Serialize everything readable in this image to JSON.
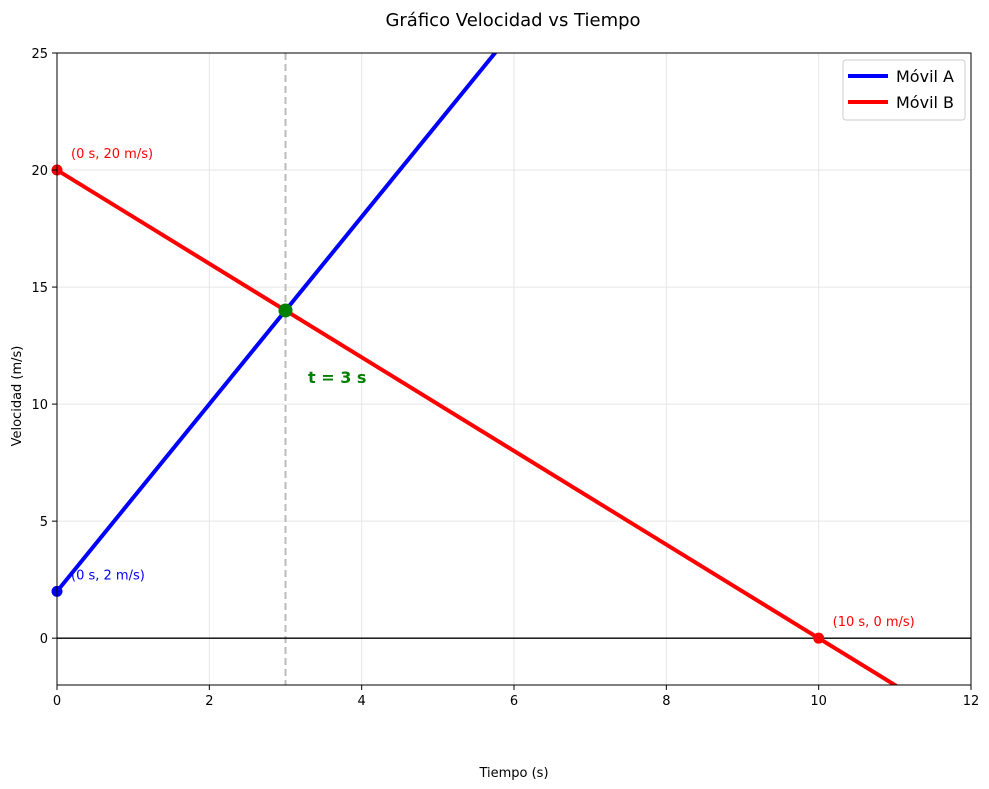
{
  "chart_data": {
    "type": "line",
    "title": "Gráfico Velocidad vs Tiempo",
    "xlabel": "Tiempo (s)",
    "ylabel": "Velocidad (m/s)",
    "xlim": [
      0,
      12
    ],
    "ylim": [
      -2,
      25
    ],
    "x_ticks": [
      0,
      2,
      4,
      6,
      8,
      10,
      12
    ],
    "y_ticks": [
      0,
      5,
      10,
      15,
      20,
      25
    ],
    "grid": true,
    "legend_position": "top-right",
    "series": [
      {
        "name": "Móvil A",
        "color": "#0000ff",
        "x": [
          0,
          12
        ],
        "y": [
          2,
          50
        ]
      },
      {
        "name": "Móvil B",
        "color": "#ff0000",
        "x": [
          0,
          12
        ],
        "y": [
          20,
          -4
        ]
      }
    ],
    "markers": [
      {
        "x": 0,
        "y": 2,
        "color": "#0000ff",
        "label": "(0 s, 2 m/s)"
      },
      {
        "x": 0,
        "y": 20,
        "color": "#ff0000",
        "label": "(0 s, 20 m/s)"
      },
      {
        "x": 10,
        "y": 0,
        "color": "#ff0000",
        "label": "(10 s, 0 m/s)"
      },
      {
        "x": 3,
        "y": 14,
        "color": "#008000",
        "label": ""
      }
    ],
    "intersection": {
      "x": 3,
      "y": 14,
      "label": "t = 3 s",
      "color": "#008000"
    },
    "reference_lines": [
      {
        "orientation": "vertical",
        "value": 3,
        "style": "dashed",
        "color": "#bbbbbb"
      },
      {
        "orientation": "horizontal",
        "value": 0,
        "style": "solid",
        "color": "#000000"
      }
    ]
  }
}
